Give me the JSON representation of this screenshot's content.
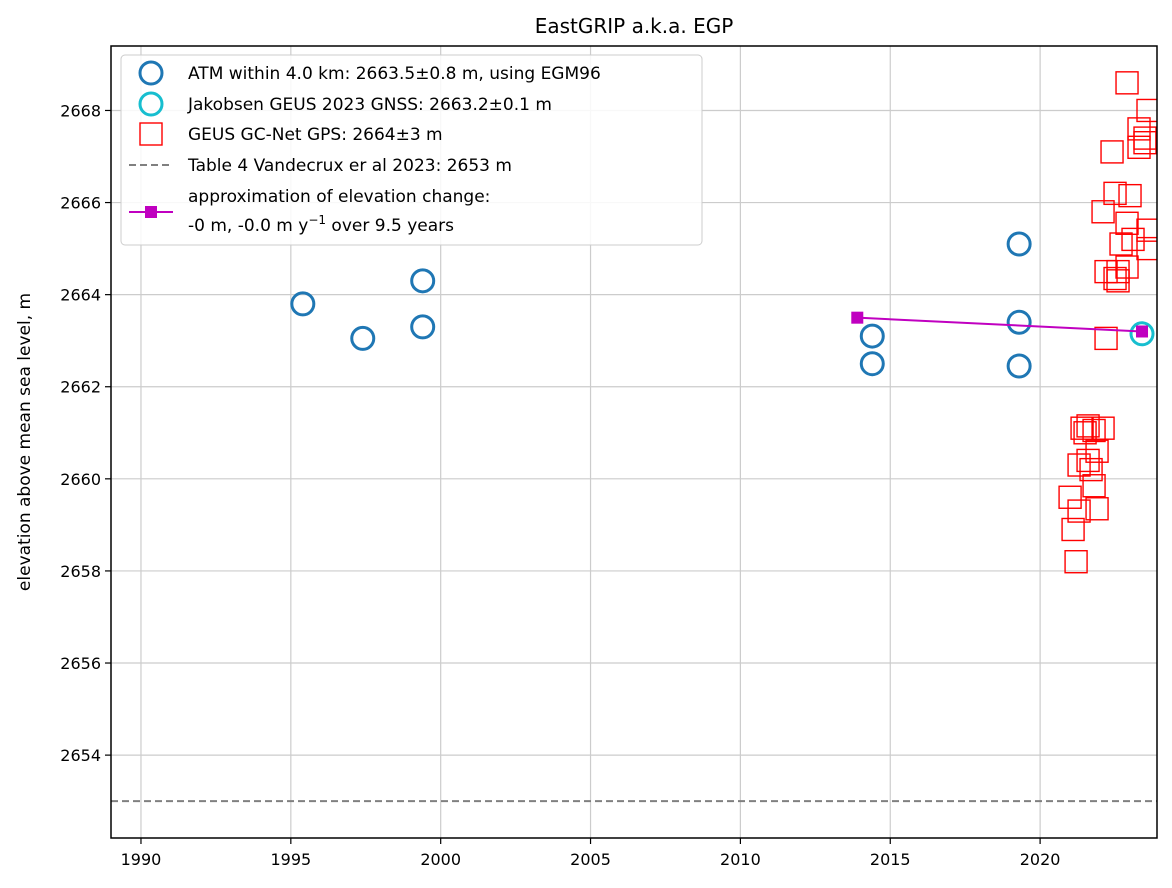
{
  "chart_data": {
    "type": "scatter",
    "title": "EastGRIP a.k.a. EGP",
    "xlabel": "",
    "ylabel": "elevation above mean sea level, m",
    "xlim": [
      1989,
      2023.9
    ],
    "ylim": [
      2652.2,
      2669.4
    ],
    "x_ticks": [
      1990,
      1995,
      2000,
      2005,
      2010,
      2015,
      2020
    ],
    "y_ticks": [
      2654,
      2656,
      2658,
      2660,
      2662,
      2664,
      2666,
      2668
    ],
    "grid": true,
    "legend_placement": "top-left",
    "colors": {
      "atm": "#1f77b4",
      "jakobsen": "#17becf",
      "gcnet": "#ff0000",
      "table4": "#808080",
      "trend": "#c000c0"
    },
    "legend": [
      {
        "key": "atm",
        "text": "ATM within 4.0 km: 2663.5±0.8 m, using EGM96"
      },
      {
        "key": "jakobsen",
        "text": "Jakobsen GEUS 2023 GNSS: 2663.2±0.1 m"
      },
      {
        "key": "gcnet",
        "text": "GEUS GC-Net GPS: 2664±3 m"
      },
      {
        "key": "table4",
        "text": "Table 4 Vandecrux er al 2023: 2653 m"
      },
      {
        "key": "trend",
        "text_line1": "approximation of elevation change:",
        "text_line2_pre": "-0 m, -0.0 m y",
        "text_line2_sup": "−1",
        "text_line2_post": " over 9.5 years"
      }
    ],
    "series": [
      {
        "key": "atm",
        "marker": "circle",
        "points": [
          [
            1995.4,
            2663.8
          ],
          [
            1997.4,
            2663.05
          ],
          [
            1999.4,
            2664.3
          ],
          [
            1999.4,
            2663.3
          ],
          [
            2014.4,
            2663.1
          ],
          [
            2014.4,
            2662.5
          ],
          [
            2019.3,
            2665.1
          ],
          [
            2019.3,
            2663.4
          ],
          [
            2019.3,
            2662.45
          ]
        ]
      },
      {
        "key": "jakobsen",
        "marker": "circle",
        "points": [
          [
            2023.4,
            2663.15
          ]
        ]
      },
      {
        "key": "gcnet",
        "marker": "square",
        "points": [
          [
            2022.9,
            2668.6
          ],
          [
            2023.6,
            2668.0
          ],
          [
            2023.3,
            2667.6
          ],
          [
            2023.5,
            2667.4
          ],
          [
            2023.3,
            2667.2
          ],
          [
            2023.5,
            2667.3
          ],
          [
            2022.4,
            2667.1
          ],
          [
            2022.5,
            2666.2
          ],
          [
            2023.0,
            2666.15
          ],
          [
            2022.1,
            2665.8
          ],
          [
            2022.9,
            2665.55
          ],
          [
            2023.6,
            2665.4
          ],
          [
            2023.1,
            2665.2
          ],
          [
            2022.7,
            2665.1
          ],
          [
            2023.6,
            2665.0
          ],
          [
            2022.9,
            2664.6
          ],
          [
            2022.6,
            2664.5
          ],
          [
            2022.2,
            2664.5
          ],
          [
            2022.5,
            2664.35
          ],
          [
            2022.6,
            2664.3
          ],
          [
            2022.2,
            2663.05
          ],
          [
            2021.4,
            2661.1
          ],
          [
            2021.6,
            2661.15
          ],
          [
            2022.1,
            2661.1
          ],
          [
            2021.5,
            2661.0
          ],
          [
            2021.8,
            2661.05
          ],
          [
            2021.9,
            2660.6
          ],
          [
            2021.6,
            2660.4
          ],
          [
            2021.3,
            2660.3
          ],
          [
            2021.7,
            2660.2
          ],
          [
            2021.8,
            2659.85
          ],
          [
            2021.0,
            2659.6
          ],
          [
            2021.3,
            2659.3
          ],
          [
            2021.9,
            2659.35
          ],
          [
            2021.1,
            2658.9
          ],
          [
            2021.2,
            2658.2
          ]
        ]
      }
    ],
    "hline": {
      "key": "table4",
      "y": 2653
    },
    "trend_line": {
      "key": "trend",
      "points": [
        [
          2013.9,
          2663.5
        ],
        [
          2023.4,
          2663.2
        ]
      ]
    }
  }
}
